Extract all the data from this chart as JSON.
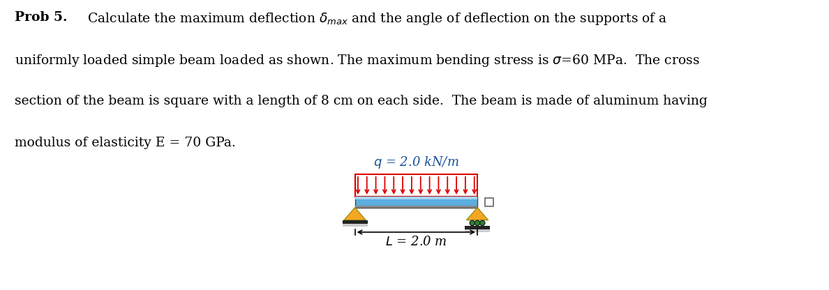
{
  "prob_label": "Prob 5.",
  "line1": "    Calculate the maximum deflection $\\delta_{max}$ and the angle of deflection on the supports of a",
  "line2": "uniformly loaded simple beam loaded as shown. The maximum bending stress is $\\sigma$=60 MPa.  The cross",
  "line3": "section of the beam is square with a length of 8 cm on each side.  The beam is made of aluminum having",
  "line4": "modulus of elasticity E = 70 GPa.",
  "q_label": "$q$ = 2.0 kN/m",
  "L_label": "$L$ = 2.0 m",
  "beam_blue": "#5baee0",
  "beam_light": "#a8d4f0",
  "beam_dark": "#2a7ab8",
  "beam_gray": "#888888",
  "load_red": "#dd0000",
  "load_bg": "#ffffff",
  "support_orange": "#f5a623",
  "support_dark_orange": "#c87d00",
  "roller_green": "#2e7d32",
  "base_black": "#222222",
  "shadow_gray": "#aaaaaa",
  "sq_edge": "#666666",
  "background": "#ffffff",
  "n_arrows": 14,
  "text_fontsize": 13.5,
  "q_fontsize": 13,
  "L_fontsize": 13
}
